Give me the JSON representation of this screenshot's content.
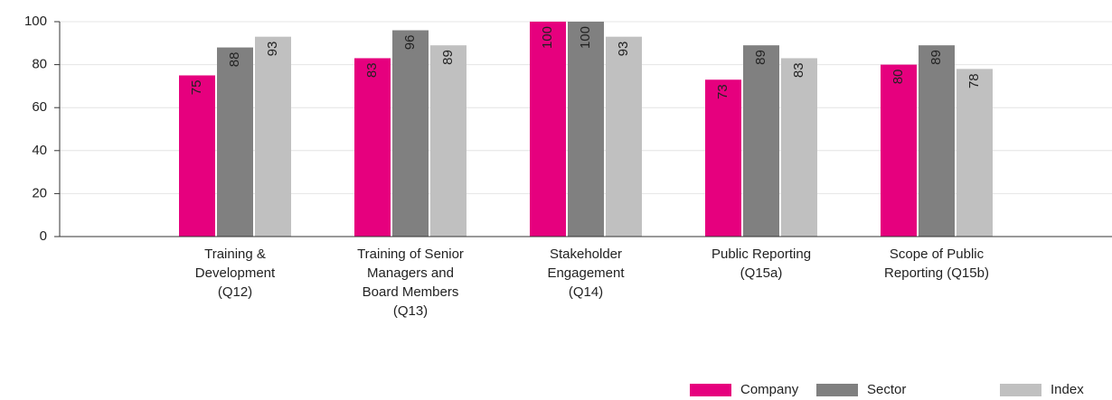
{
  "chart_data": {
    "type": "bar",
    "categories": [
      "Training &\nDevelopment\n(Q12)",
      "Training of Senior\nManagers and\nBoard Members\n(Q13)",
      "Stakeholder\nEngagement\n(Q14)",
      "Public Reporting\n(Q15a)",
      "Scope of Public\nReporting (Q15b)"
    ],
    "series": [
      {
        "name": "Company",
        "color": "#e6007e",
        "values": [
          75,
          83,
          100,
          73,
          80
        ]
      },
      {
        "name": "Sector",
        "color": "#808080",
        "values": [
          88,
          96,
          100,
          89,
          89
        ]
      },
      {
        "name": "Index",
        "color": "#c0c0c0",
        "values": [
          93,
          89,
          93,
          83,
          78
        ]
      }
    ],
    "ylim": [
      0,
      100
    ],
    "yticks": [
      0,
      20,
      40,
      60,
      80,
      100
    ],
    "grid": true,
    "legend": "bottom-right"
  }
}
